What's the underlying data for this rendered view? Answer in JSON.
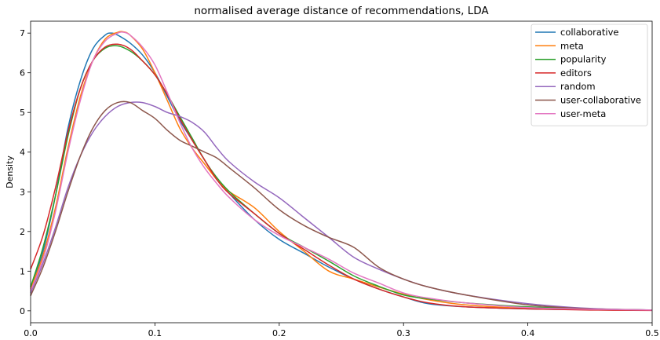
{
  "chart_data": {
    "type": "line",
    "title": "normalised average distance of recommendations, LDA",
    "xlabel": "",
    "ylabel": "Density",
    "xlim": [
      0.0,
      0.5
    ],
    "ylim": [
      -0.3,
      7.3
    ],
    "xticks": [
      "0.0",
      "0.1",
      "0.2",
      "0.3",
      "0.4",
      "0.5"
    ],
    "yticks": [
      "0",
      "1",
      "2",
      "3",
      "4",
      "5",
      "6",
      "7"
    ],
    "grid": false,
    "legend_position": "top-right",
    "series": [
      {
        "name": "collaborative",
        "color": "#1f77b4",
        "x": [
          0.0,
          0.01,
          0.02,
          0.03,
          0.04,
          0.05,
          0.06,
          0.065,
          0.07,
          0.08,
          0.09,
          0.1,
          0.11,
          0.12,
          0.13,
          0.14,
          0.15,
          0.16,
          0.18,
          0.2,
          0.22,
          0.24,
          0.26,
          0.28,
          0.3,
          0.32,
          0.35,
          0.4,
          0.45,
          0.5
        ],
        "y": [
          0.6,
          1.5,
          2.9,
          4.6,
          5.8,
          6.6,
          6.95,
          7.0,
          6.95,
          6.75,
          6.45,
          6.0,
          5.4,
          4.8,
          4.3,
          3.8,
          3.3,
          2.95,
          2.3,
          1.8,
          1.45,
          1.1,
          0.8,
          0.55,
          0.35,
          0.18,
          0.1,
          0.05,
          0.03,
          0.02
        ]
      },
      {
        "name": "meta",
        "color": "#ff7f0e",
        "x": [
          0.0,
          0.01,
          0.02,
          0.03,
          0.04,
          0.05,
          0.06,
          0.07,
          0.075,
          0.08,
          0.09,
          0.1,
          0.11,
          0.12,
          0.13,
          0.14,
          0.15,
          0.16,
          0.18,
          0.2,
          0.22,
          0.24,
          0.26,
          0.28,
          0.3,
          0.32,
          0.35,
          0.4,
          0.45,
          0.5
        ],
        "y": [
          0.55,
          1.4,
          2.6,
          4.1,
          5.4,
          6.3,
          6.85,
          7.02,
          7.03,
          6.95,
          6.6,
          6.0,
          5.3,
          4.6,
          4.1,
          3.7,
          3.3,
          3.0,
          2.6,
          2.0,
          1.5,
          1.0,
          0.8,
          0.6,
          0.42,
          0.28,
          0.15,
          0.06,
          0.03,
          0.02
        ]
      },
      {
        "name": "popularity",
        "color": "#2ca02c",
        "x": [
          0.0,
          0.01,
          0.02,
          0.03,
          0.04,
          0.05,
          0.06,
          0.07,
          0.08,
          0.09,
          0.1,
          0.11,
          0.12,
          0.13,
          0.14,
          0.15,
          0.16,
          0.18,
          0.2,
          0.22,
          0.24,
          0.26,
          0.28,
          0.3,
          0.32,
          0.35,
          0.4,
          0.45,
          0.5
        ],
        "y": [
          0.6,
          1.6,
          2.9,
          4.4,
          5.6,
          6.3,
          6.62,
          6.68,
          6.55,
          6.3,
          5.95,
          5.45,
          4.9,
          4.35,
          3.8,
          3.35,
          3.0,
          2.45,
          1.95,
          1.6,
          1.25,
          0.88,
          0.62,
          0.4,
          0.3,
          0.2,
          0.1,
          0.05,
          0.02
        ]
      },
      {
        "name": "editors",
        "color": "#d62728",
        "x": [
          0.0,
          0.01,
          0.02,
          0.03,
          0.04,
          0.05,
          0.06,
          0.07,
          0.08,
          0.09,
          0.1,
          0.11,
          0.12,
          0.13,
          0.14,
          0.15,
          0.16,
          0.18,
          0.2,
          0.22,
          0.24,
          0.26,
          0.28,
          0.3,
          0.32,
          0.35,
          0.4,
          0.45,
          0.5
        ],
        "y": [
          1.05,
          1.9,
          3.1,
          4.5,
          5.6,
          6.3,
          6.65,
          6.72,
          6.6,
          6.3,
          5.95,
          5.45,
          4.85,
          4.3,
          3.8,
          3.3,
          2.95,
          2.45,
          1.95,
          1.55,
          1.15,
          0.8,
          0.55,
          0.35,
          0.2,
          0.1,
          0.05,
          0.02,
          0.01
        ]
      },
      {
        "name": "random",
        "color": "#9467bd",
        "x": [
          0.0,
          0.01,
          0.02,
          0.03,
          0.04,
          0.05,
          0.06,
          0.07,
          0.08,
          0.09,
          0.1,
          0.11,
          0.12,
          0.13,
          0.14,
          0.15,
          0.16,
          0.18,
          0.2,
          0.22,
          0.24,
          0.26,
          0.28,
          0.3,
          0.32,
          0.35,
          0.4,
          0.45,
          0.5
        ],
        "y": [
          0.45,
          1.2,
          2.1,
          3.1,
          3.9,
          4.5,
          4.9,
          5.15,
          5.25,
          5.25,
          5.15,
          5.0,
          4.9,
          4.75,
          4.5,
          4.1,
          3.75,
          3.25,
          2.85,
          2.35,
          1.85,
          1.35,
          1.05,
          0.8,
          0.6,
          0.4,
          0.18,
          0.06,
          0.02
        ]
      },
      {
        "name": "user-collaborative",
        "color": "#8c564b",
        "x": [
          0.0,
          0.01,
          0.02,
          0.03,
          0.04,
          0.05,
          0.06,
          0.07,
          0.08,
          0.09,
          0.1,
          0.11,
          0.12,
          0.13,
          0.14,
          0.15,
          0.16,
          0.18,
          0.2,
          0.22,
          0.24,
          0.26,
          0.28,
          0.3,
          0.32,
          0.35,
          0.4,
          0.45,
          0.5
        ],
        "y": [
          0.38,
          1.1,
          2.0,
          3.0,
          3.9,
          4.6,
          5.05,
          5.25,
          5.25,
          5.05,
          4.85,
          4.55,
          4.3,
          4.15,
          4.0,
          3.85,
          3.6,
          3.1,
          2.55,
          2.15,
          1.85,
          1.6,
          1.1,
          0.8,
          0.6,
          0.4,
          0.15,
          0.05,
          0.02
        ]
      },
      {
        "name": "user-meta",
        "color": "#e377c2",
        "x": [
          0.0,
          0.01,
          0.02,
          0.03,
          0.04,
          0.05,
          0.06,
          0.07,
          0.075,
          0.08,
          0.09,
          0.1,
          0.11,
          0.12,
          0.13,
          0.14,
          0.15,
          0.16,
          0.18,
          0.2,
          0.22,
          0.24,
          0.26,
          0.28,
          0.3,
          0.32,
          0.35,
          0.4,
          0.45,
          0.5
        ],
        "y": [
          0.5,
          1.3,
          2.5,
          4.0,
          5.3,
          6.3,
          6.8,
          7.0,
          7.02,
          6.95,
          6.65,
          6.2,
          5.5,
          4.75,
          4.1,
          3.6,
          3.2,
          2.85,
          2.3,
          1.9,
          1.6,
          1.3,
          0.95,
          0.7,
          0.45,
          0.32,
          0.2,
          0.08,
          0.04,
          0.02
        ]
      }
    ]
  }
}
